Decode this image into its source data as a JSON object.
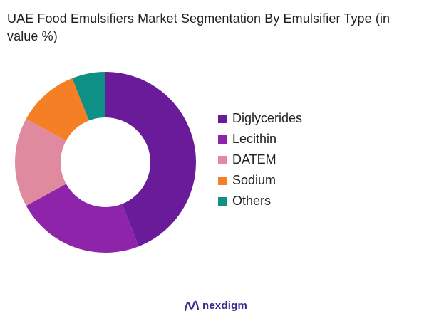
{
  "chart_data": {
    "type": "pie",
    "title": "UAE Food Emulsifiers Market Segmentation By Emulsifier Type (in value %)",
    "categories": [
      "Diglycerides",
      "Lecithin",
      "DATEM",
      "Sodium",
      "Others"
    ],
    "values": [
      44,
      23,
      16,
      11,
      6
    ],
    "colors": [
      "#6a1b9a",
      "#8e24aa",
      "#e08aa0",
      "#f57f25",
      "#0e9086"
    ],
    "legend_position": "right",
    "donut": true
  },
  "brand": {
    "name": "nexdigm",
    "icon": "nexdigm-logo-icon"
  }
}
